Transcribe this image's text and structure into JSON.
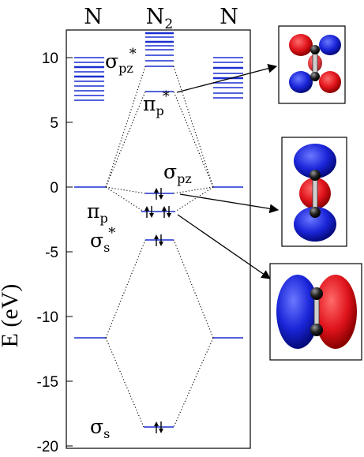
{
  "columns": {
    "left": "N",
    "middle_main": "N",
    "middle_sub": "2",
    "right": "N"
  },
  "y_axis": {
    "title": "E (eV)",
    "ticks": [
      "10",
      "5",
      "0",
      "-5",
      "-10",
      "-15",
      "-20"
    ]
  },
  "orbital_labels": {
    "sigma_pz_star": {
      "main": "σ",
      "sub": "pz",
      "sup": "*"
    },
    "pi_p_star": {
      "main": "π",
      "sub": "p",
      "sup": "*"
    },
    "sigma_pz": {
      "main": "σ",
      "sub": "pz"
    },
    "pi_p": {
      "main": "π",
      "sub": "p"
    },
    "sigma_s_star": {
      "main": "σ",
      "sub": "s",
      "sup": "*"
    },
    "sigma_s": {
      "main": "σ",
      "sub": "s"
    }
  },
  "colors": {
    "level": "#1a2fd0",
    "lobe_positive": "#e0141c",
    "lobe_negative": "#1a25d8",
    "atom": "#111111"
  },
  "orbital_images": [
    "sigma-pz-antibonding-isosurface",
    "sigma-pz-bonding-isosurface",
    "pi-p-bonding-isosurface"
  ]
}
